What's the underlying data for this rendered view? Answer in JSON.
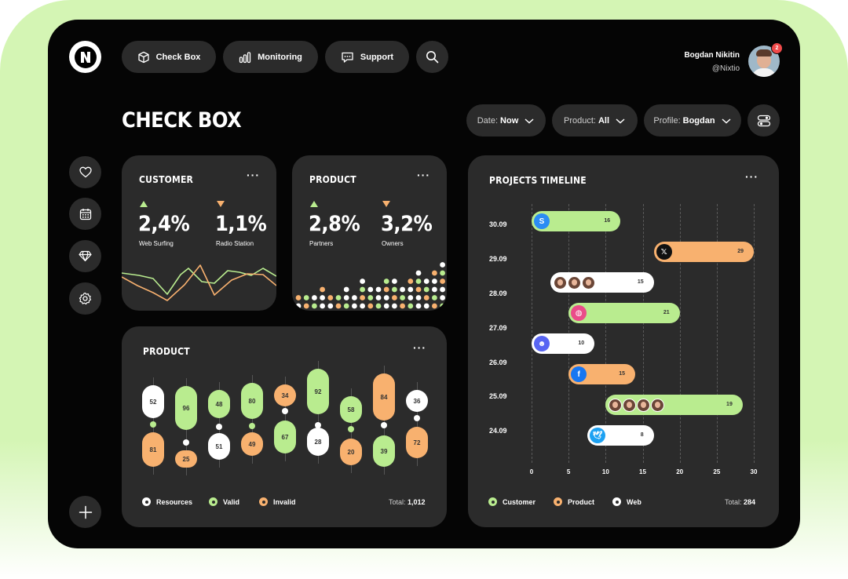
{
  "user": {
    "name": "Bogdan Nikitin",
    "handle": "@Nixtio",
    "notifications": "2"
  },
  "nav": {
    "check_box": "Check Box",
    "monitoring": "Monitoring",
    "support": "Support"
  },
  "page_title": "CHECK BOX",
  "filters": {
    "date_label": "Date:",
    "date_value": "Now",
    "product_label": "Product:",
    "product_value": "All",
    "profile_label": "Profile:",
    "profile_value": "Bogdan"
  },
  "customer_card": {
    "title": "CUSTOMER",
    "stat1_value": "2,4%",
    "stat1_label": "Web Surfing",
    "stat2_value": "1,1%",
    "stat2_label": "Radio Station"
  },
  "product_card": {
    "title": "PRODUCT",
    "stat1_value": "2,8%",
    "stat1_label": "Partners",
    "stat2_value": "3,2%",
    "stat2_label": "Owners"
  },
  "product_chart": {
    "title": "PRODUCT",
    "legend": [
      "Resources",
      "Valid",
      "Invalid"
    ],
    "total_label": "Total:",
    "total_value": "1,012",
    "columns": [
      {
        "top": {
          "value": "52",
          "color": "white"
        },
        "bottom": {
          "value": "81",
          "color": "orange"
        }
      },
      {
        "top": {
          "value": "96",
          "color": "green"
        },
        "bottom": {
          "value": "25",
          "color": "orange"
        }
      },
      {
        "top": {
          "value": "48",
          "color": "green"
        },
        "bottom": {
          "value": "51",
          "color": "white"
        }
      },
      {
        "top": {
          "value": "80",
          "color": "green"
        },
        "bottom": {
          "value": "49",
          "color": "orange"
        }
      },
      {
        "top": {
          "value": "34",
          "color": "orange"
        },
        "bottom": {
          "value": "67",
          "color": "green"
        }
      },
      {
        "top": {
          "value": "92",
          "color": "green"
        },
        "bottom": {
          "value": "28",
          "color": "white"
        }
      },
      {
        "top": {
          "value": "58",
          "color": "green"
        },
        "bottom": {
          "value": "20",
          "color": "orange"
        }
      },
      {
        "top": {
          "value": "84",
          "color": "orange"
        },
        "bottom": {
          "value": "39",
          "color": "green"
        }
      },
      {
        "top": {
          "value": "36",
          "color": "white"
        },
        "bottom": {
          "value": "72",
          "color": "orange"
        }
      }
    ]
  },
  "timeline": {
    "title": "PROJECTS TIMELINE",
    "days": [
      "30.09",
      "29.09",
      "28.09",
      "27.09",
      "26.09",
      "25.09",
      "24.09"
    ],
    "axis": [
      "0",
      "5",
      "10",
      "15",
      "20",
      "25",
      "30"
    ],
    "bars": [
      {
        "day": "30.09",
        "start": 0,
        "end": 12,
        "value": "16",
        "color": "green",
        "icon": "shazam-icon"
      },
      {
        "day": "29.09",
        "start": 16.5,
        "end": 30,
        "value": "29",
        "color": "orange",
        "icon": "x-twitter-icon"
      },
      {
        "day": "28.09",
        "start": 2.5,
        "end": 16.5,
        "value": "15",
        "color": "white",
        "icon": "avatars"
      },
      {
        "day": "27.09",
        "start": 5,
        "end": 20,
        "value": "21",
        "color": "green",
        "icon": "dribbble-icon"
      },
      {
        "day": "26.09",
        "start": 0,
        "end": 8.5,
        "value": "10",
        "color": "white",
        "icon": "discord-icon"
      },
      {
        "day": "25.09",
        "start": 5,
        "end": 14,
        "value": "15",
        "color": "orange",
        "icon": "facebook-icon"
      },
      {
        "day": "24.09",
        "start": 10,
        "end": 28.5,
        "value": "19",
        "color": "green",
        "icon": "avatars"
      },
      {
        "day": "24.09",
        "start": 7.5,
        "end": 16.5,
        "value": "8",
        "color": "white",
        "icon": "twitter-icon"
      }
    ],
    "legend": [
      "Customer",
      "Product",
      "Web"
    ],
    "total_label": "Total:",
    "total_value": "284"
  },
  "colors": {
    "green": "#b9ec8f",
    "orange": "#f8b16f",
    "white": "#ffffff",
    "card": "#2b2b2b",
    "bg": "#050505"
  }
}
